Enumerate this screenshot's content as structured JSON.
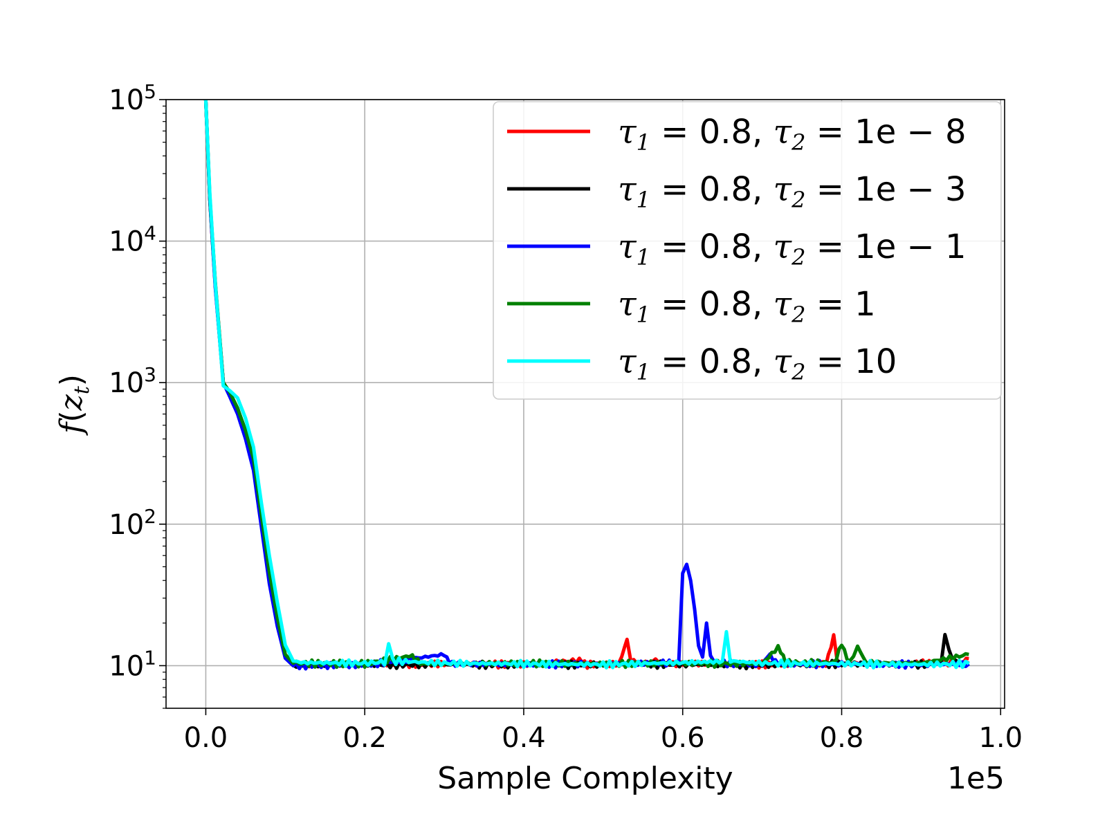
{
  "chart_data": {
    "type": "line",
    "title": "",
    "xlabel": "Sample Complexity",
    "ylabel": "f(z_t)",
    "x_multiplier_label": "1e5",
    "xlim": [
      -0.05,
      1.005
    ],
    "ylim": [
      5,
      100000
    ],
    "y_scale": "log",
    "grid": true,
    "legend_position": "top-right",
    "x_ticks": [
      {
        "value": 0.0,
        "label": "0.0"
      },
      {
        "value": 0.2,
        "label": "0.2"
      },
      {
        "value": 0.4,
        "label": "0.4"
      },
      {
        "value": 0.6,
        "label": "0.6"
      },
      {
        "value": 0.8,
        "label": "0.8"
      },
      {
        "value": 1.0,
        "label": "1.0"
      }
    ],
    "y_ticks": [
      {
        "value": 10,
        "base": "10",
        "exp": "1"
      },
      {
        "value": 100,
        "base": "10",
        "exp": "2"
      },
      {
        "value": 1000,
        "base": "10",
        "exp": "3"
      },
      {
        "value": 10000,
        "base": "10",
        "exp": "4"
      },
      {
        "value": 100000,
        "base": "10",
        "exp": "5"
      }
    ],
    "series": [
      {
        "name": "τ1 = 0.8, τ2 = 1e − 8",
        "legend": {
          "tau1": "0.8",
          "tau2": "1e − 8"
        },
        "color": "#ff0000",
        "points": [
          [
            0.0,
            100000
          ],
          [
            0.005,
            20000
          ],
          [
            0.012,
            5000
          ],
          [
            0.022,
            1000
          ],
          [
            0.03,
            850
          ],
          [
            0.04,
            650
          ],
          [
            0.05,
            450
          ],
          [
            0.06,
            280
          ],
          [
            0.07,
            110
          ],
          [
            0.08,
            45
          ],
          [
            0.09,
            22
          ],
          [
            0.1,
            12
          ],
          [
            0.11,
            10.3
          ],
          [
            0.13,
            10.2
          ],
          [
            0.2,
            10.2
          ],
          [
            0.3,
            10.3
          ],
          [
            0.4,
            10.2
          ],
          [
            0.47,
            10.9
          ],
          [
            0.48,
            10.2
          ],
          [
            0.52,
            10.3
          ],
          [
            0.53,
            15.5
          ],
          [
            0.535,
            11
          ],
          [
            0.545,
            10.2
          ],
          [
            0.57,
            11
          ],
          [
            0.575,
            10.2
          ],
          [
            0.6,
            10.4
          ],
          [
            0.7,
            10.2
          ],
          [
            0.78,
            10.3
          ],
          [
            0.79,
            16
          ],
          [
            0.795,
            10.4
          ],
          [
            0.85,
            10.3
          ],
          [
            0.95,
            10.5
          ],
          [
            0.96,
            11.2
          ]
        ]
      },
      {
        "name": "τ1 = 0.8, τ2 = 1e − 3",
        "legend": {
          "tau1": "0.8",
          "tau2": "1e − 3"
        },
        "color": "#000000",
        "points": [
          [
            0.0,
            100000
          ],
          [
            0.005,
            20000
          ],
          [
            0.012,
            4800
          ],
          [
            0.022,
            1000
          ],
          [
            0.03,
            820
          ],
          [
            0.04,
            620
          ],
          [
            0.05,
            420
          ],
          [
            0.06,
            260
          ],
          [
            0.07,
            100
          ],
          [
            0.08,
            40
          ],
          [
            0.09,
            20
          ],
          [
            0.1,
            11.5
          ],
          [
            0.11,
            10.1
          ],
          [
            0.2,
            10.1
          ],
          [
            0.3,
            10.2
          ],
          [
            0.4,
            10.1
          ],
          [
            0.5,
            10.2
          ],
          [
            0.6,
            10.2
          ],
          [
            0.7,
            10.1
          ],
          [
            0.8,
            10.3
          ],
          [
            0.9,
            10.2
          ],
          [
            0.925,
            10.4
          ],
          [
            0.93,
            16.5
          ],
          [
            0.935,
            12.5
          ],
          [
            0.94,
            11
          ],
          [
            0.95,
            10.2
          ],
          [
            0.96,
            10.4
          ]
        ]
      },
      {
        "name": "τ1 = 0.8, τ2 = 1e − 1",
        "legend": {
          "tau1": "0.8",
          "tau2": "1e − 1"
        },
        "color": "#0000ff",
        "points": [
          [
            0.0,
            100000
          ],
          [
            0.005,
            20000
          ],
          [
            0.012,
            4700
          ],
          [
            0.022,
            1000
          ],
          [
            0.03,
            800
          ],
          [
            0.04,
            600
          ],
          [
            0.05,
            400
          ],
          [
            0.06,
            240
          ],
          [
            0.07,
            95
          ],
          [
            0.08,
            38
          ],
          [
            0.09,
            19
          ],
          [
            0.1,
            11.3
          ],
          [
            0.11,
            10
          ],
          [
            0.2,
            10.1
          ],
          [
            0.3,
            12
          ],
          [
            0.31,
            10.3
          ],
          [
            0.4,
            10.2
          ],
          [
            0.5,
            10.3
          ],
          [
            0.595,
            10.5
          ],
          [
            0.6,
            45
          ],
          [
            0.605,
            52
          ],
          [
            0.61,
            40
          ],
          [
            0.615,
            25
          ],
          [
            0.62,
            14
          ],
          [
            0.625,
            11.5
          ],
          [
            0.63,
            20
          ],
          [
            0.635,
            12
          ],
          [
            0.64,
            10.5
          ],
          [
            0.7,
            10.2
          ],
          [
            0.71,
            12
          ],
          [
            0.72,
            10.3
          ],
          [
            0.8,
            10.3
          ],
          [
            0.9,
            10.2
          ],
          [
            0.96,
            10.3
          ]
        ]
      },
      {
        "name": "τ1 = 0.8, τ2 = 1",
        "legend": {
          "tau1": "0.8",
          "tau2": "1"
        },
        "color": "#008000",
        "points": [
          [
            0.0,
            100000
          ],
          [
            0.005,
            21000
          ],
          [
            0.012,
            5100
          ],
          [
            0.022,
            1000
          ],
          [
            0.03,
            860
          ],
          [
            0.04,
            660
          ],
          [
            0.05,
            460
          ],
          [
            0.06,
            290
          ],
          [
            0.07,
            115
          ],
          [
            0.08,
            46
          ],
          [
            0.09,
            22
          ],
          [
            0.1,
            12
          ],
          [
            0.11,
            10.4
          ],
          [
            0.2,
            10.3
          ],
          [
            0.26,
            11.8
          ],
          [
            0.27,
            10.3
          ],
          [
            0.4,
            10.4
          ],
          [
            0.5,
            10.3
          ],
          [
            0.6,
            10.4
          ],
          [
            0.7,
            10.3
          ],
          [
            0.72,
            13.5
          ],
          [
            0.73,
            10.5
          ],
          [
            0.79,
            10.5
          ],
          [
            0.8,
            14
          ],
          [
            0.81,
            10.6
          ],
          [
            0.82,
            14
          ],
          [
            0.83,
            10.5
          ],
          [
            0.9,
            10.4
          ],
          [
            0.96,
            12
          ]
        ]
      },
      {
        "name": "τ1 = 0.8, τ2 = 10",
        "legend": {
          "tau1": "0.8",
          "tau2": "10"
        },
        "color": "#00ffff",
        "points": [
          [
            0.0,
            100000
          ],
          [
            0.005,
            22000
          ],
          [
            0.012,
            5000
          ],
          [
            0.022,
            950
          ],
          [
            0.03,
            880
          ],
          [
            0.04,
            780
          ],
          [
            0.05,
            560
          ],
          [
            0.06,
            350
          ],
          [
            0.07,
            140
          ],
          [
            0.08,
            60
          ],
          [
            0.09,
            28
          ],
          [
            0.1,
            14
          ],
          [
            0.11,
            10.8
          ],
          [
            0.12,
            10.5
          ],
          [
            0.2,
            10.4
          ],
          [
            0.225,
            10.6
          ],
          [
            0.23,
            14
          ],
          [
            0.235,
            10.8
          ],
          [
            0.3,
            10.4
          ],
          [
            0.4,
            10.3
          ],
          [
            0.5,
            10.2
          ],
          [
            0.6,
            10.5
          ],
          [
            0.65,
            10.7
          ],
          [
            0.655,
            17
          ],
          [
            0.66,
            10.8
          ],
          [
            0.7,
            10.4
          ],
          [
            0.8,
            10.3
          ],
          [
            0.9,
            10.2
          ],
          [
            0.96,
            10.3
          ]
        ]
      }
    ]
  }
}
